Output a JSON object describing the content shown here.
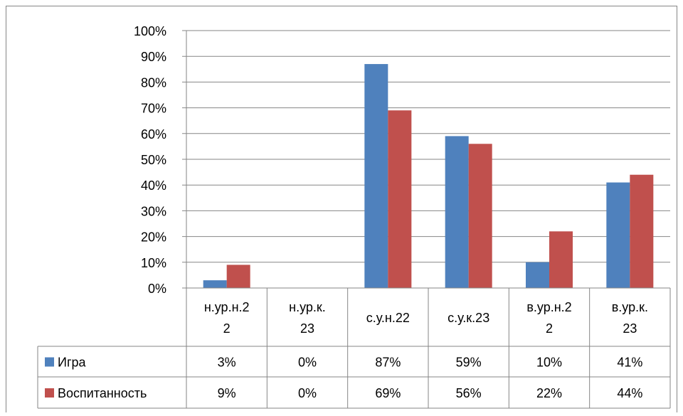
{
  "chart_data": {
    "type": "bar",
    "title": "",
    "xlabel": "",
    "ylabel": "",
    "ylim": [
      0,
      100
    ],
    "yticks": [
      "0%",
      "10%",
      "20%",
      "30%",
      "40%",
      "50%",
      "60%",
      "70%",
      "80%",
      "90%",
      "100%"
    ],
    "grid": true,
    "legend": "data-table",
    "categories": [
      [
        "н.ур.н.2",
        "2"
      ],
      [
        "н.ур.к.",
        "23"
      ],
      [
        "с.у.н.22"
      ],
      [
        "с.у.к.23"
      ],
      [
        "в.ур.н.2",
        "2"
      ],
      [
        "в.ур.к.",
        "23"
      ]
    ],
    "series": [
      {
        "name": "Игра",
        "color": "#4F81BD",
        "values": [
          3,
          0,
          87,
          59,
          10,
          41
        ],
        "labels": [
          "3%",
          "0%",
          "87%",
          "59%",
          "10%",
          "41%"
        ]
      },
      {
        "name": "Воспитанность",
        "color": "#C0504D",
        "values": [
          9,
          0,
          69,
          56,
          22,
          44
        ],
        "labels": [
          "9%",
          "0%",
          "69%",
          "56%",
          "22%",
          "44%"
        ]
      }
    ]
  }
}
